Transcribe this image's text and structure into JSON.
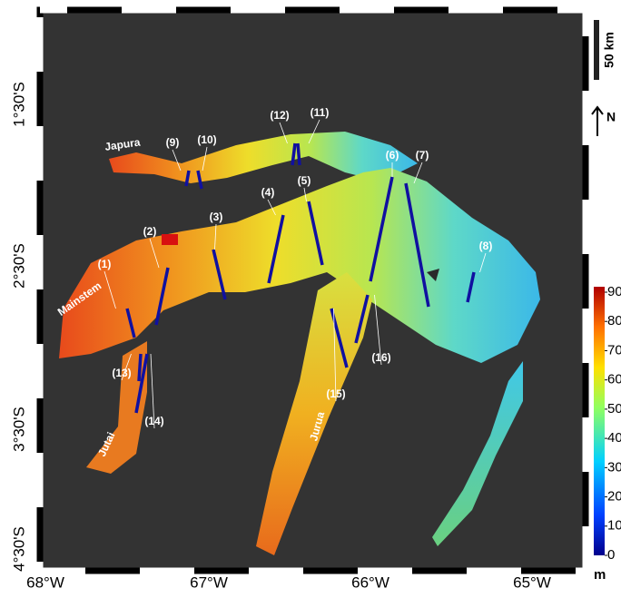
{
  "map": {
    "scale_bar": "50 km",
    "north": "N",
    "rivers": [
      "Japura",
      "Mainstem",
      "Jurua",
      "Jutai"
    ],
    "latitude_labels": [
      "1°30'S",
      "2°30'S",
      "3°30'S",
      "4°30'S"
    ],
    "longitude_labels": [
      "68°W",
      "67°W",
      "66°W",
      "65°W"
    ],
    "transects": [
      "(1)",
      "(2)",
      "(3)",
      "(4)",
      "(5)",
      "(6)",
      "(7)",
      "(8)",
      "(9)",
      "(10)",
      "(11)",
      "(12)",
      "(13)",
      "(14)",
      "(15)",
      "(16)"
    ]
  },
  "colorbar": {
    "ticks": [
      0,
      10,
      20,
      30,
      40,
      50,
      60,
      70,
      80,
      90
    ],
    "unit": "m"
  }
}
